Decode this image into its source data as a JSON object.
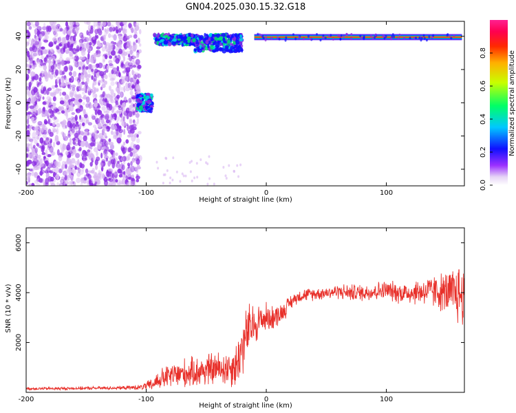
{
  "figure_title": "GN04.2025.030.15.32.G18",
  "colors": {
    "snr_line": "#e8302a",
    "spec_purple": "#8a2be2",
    "spec_light": "#d8b6f2",
    "track_red": "#e8202a",
    "track_green": "#00e070",
    "track_cyan": "#00d8e0"
  },
  "chart_data": [
    {
      "type": "heatmap",
      "title": "GN04.2025.030.15.32.G18",
      "xlabel": "Height of straight line (km)",
      "ylabel": "Frequency (Hz)",
      "xlim": [
        -200,
        165
      ],
      "ylim": [
        -50,
        49
      ],
      "xticks": [
        "-200",
        "-100",
        "0",
        "100"
      ],
      "xtick_values": [
        -200,
        -100,
        0,
        100
      ],
      "yticks": [
        "-40",
        "-20",
        "0",
        "20",
        "40"
      ],
      "ytick_values": [
        -40,
        -20,
        0,
        20,
        40
      ],
      "colorbar": {
        "label": "Normalized spectral amplitude",
        "range": [
          0,
          1
        ],
        "ticks": [
          "0.0",
          "0.2",
          "0.4",
          "0.6",
          "0.8"
        ],
        "tick_values": [
          0.0,
          0.2,
          0.4,
          0.6,
          0.8
        ],
        "colormap": "rainbow (purple-blue-cyan-green-yellow-red-magenta)"
      },
      "features": [
        {
          "region": "noise",
          "x_range": [
            -200,
            -105
          ],
          "freq_range": [
            -50,
            49
          ],
          "amplitude": 0.05
        },
        {
          "region": "blob",
          "x_range": [
            -107,
            -95
          ],
          "freq_center": 0,
          "freq_spread": 5,
          "amplitude": 0.35
        },
        {
          "region": "upper_noise",
          "x_range": [
            -93,
            -20
          ],
          "freq_range": [
            34,
            48
          ],
          "amplitude": 0.3
        },
        {
          "region": "tracked_tone",
          "x_range": [
            -10,
            163
          ],
          "freq": 39.5,
          "amplitude": 1.0
        }
      ],
      "grid": false
    },
    {
      "type": "line",
      "title": "",
      "xlabel": "Height of straight line (km)",
      "ylabel": "SNR (10 * v/v)",
      "xlim": [
        -200,
        165
      ],
      "ylim": [
        0,
        6600
      ],
      "xticks": [
        "-200",
        "-100",
        "0",
        "100"
      ],
      "xtick_values": [
        -200,
        -100,
        0,
        100
      ],
      "yticks": [
        "2000",
        "4000",
        "6000"
      ],
      "ytick_values": [
        2000,
        4000,
        6000
      ],
      "series": [
        {
          "x": [
            -200,
            -180,
            -160,
            -140,
            -120,
            -105,
            -95,
            -90,
            -80,
            -70,
            -60,
            -50,
            -40,
            -30,
            -25,
            -20,
            -15,
            -10,
            -5,
            0,
            5,
            10,
            15,
            20,
            25,
            30,
            40,
            50,
            60,
            70,
            80,
            90,
            100,
            110,
            120,
            130,
            140,
            150,
            155,
            160,
            165
          ],
          "y": [
            150,
            150,
            160,
            170,
            180,
            200,
            300,
            500,
            650,
            750,
            800,
            900,
            950,
            1000,
            1100,
            1800,
            2500,
            2700,
            2900,
            3000,
            3000,
            3100,
            3300,
            3600,
            3800,
            3900,
            3950,
            4000,
            4050,
            4000,
            4000,
            4050,
            4100,
            4000,
            4000,
            4050,
            4050,
            4000,
            3900,
            4000,
            3800
          ],
          "noise_amp": [
            70,
            70,
            70,
            80,
            80,
            120,
            300,
            450,
            600,
            700,
            700,
            800,
            800,
            900,
            1100,
            1400,
            1300,
            1000,
            800,
            700,
            600,
            500,
            450,
            350,
            300,
            300,
            300,
            300,
            350,
            400,
            400,
            450,
            450,
            500,
            550,
            650,
            800,
            1000,
            1300,
            1500,
            1500
          ]
        }
      ],
      "grid": false
    }
  ]
}
